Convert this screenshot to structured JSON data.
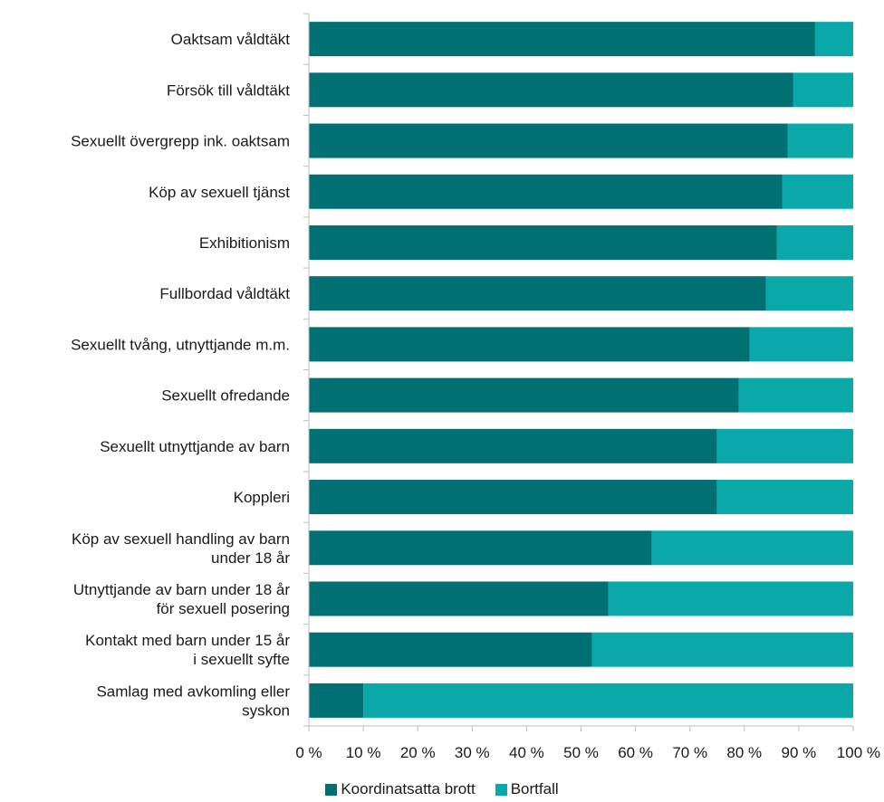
{
  "chart_data": {
    "type": "bar",
    "orientation": "horizontal",
    "stacked": true,
    "categories": [
      [
        "Oaktsam våldtäkt"
      ],
      [
        "Försök till våldtäkt"
      ],
      [
        "Sexuellt övergrepp ink. oaktsam"
      ],
      [
        "Köp av sexuell tjänst"
      ],
      [
        "Exhibitionism"
      ],
      [
        "Fullbordad våldtäkt"
      ],
      [
        "Sexuellt tvång, utnyttjande m.m."
      ],
      [
        "Sexuellt ofredande"
      ],
      [
        "Sexuellt utnyttjande av barn"
      ],
      [
        "Koppleri"
      ],
      [
        "Köp av sexuell handling av barn",
        "under 18 år"
      ],
      [
        "Utnyttjande av barn under 18 år",
        "för sexuell posering"
      ],
      [
        "Kontakt med barn under 15 år",
        "i sexuellt syfte"
      ],
      [
        "Samlag med avkomling eller",
        "syskon"
      ]
    ],
    "series": [
      {
        "name": "Koordinatsatta brott",
        "color": "#007073",
        "values": [
          93,
          89,
          88,
          87,
          86,
          84,
          81,
          79,
          75,
          75,
          63,
          55,
          52,
          10
        ]
      },
      {
        "name": "Bortfall",
        "color": "#0aa8a8",
        "values": [
          7,
          11,
          12,
          13,
          14,
          16,
          19,
          21,
          25,
          25,
          37,
          45,
          48,
          90
        ]
      }
    ],
    "x_ticks": [
      "0 %",
      "10 %",
      "20 %",
      "30 %",
      "40 %",
      "50 %",
      "60 %",
      "70 %",
      "80 %",
      "90 %",
      "100 %"
    ],
    "xlim": [
      0,
      100
    ],
    "grid": false,
    "legend_position": "bottom"
  }
}
